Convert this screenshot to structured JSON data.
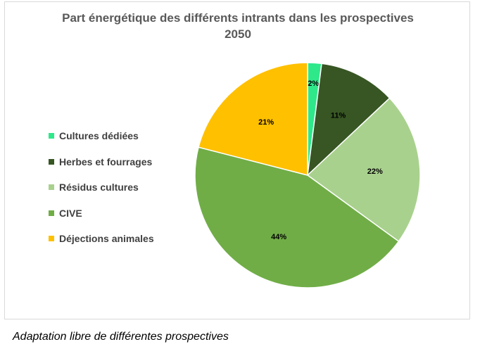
{
  "chart_data": {
    "type": "pie",
    "title_lines": [
      "Part énergétique des différents intrants dans les prospectives",
      "2050"
    ],
    "categories": [
      "Cultures dédiées",
      "Herbes et fourrages",
      "Résidus cultures",
      "CIVE",
      "Déjections animales"
    ],
    "values": [
      2,
      11,
      22,
      44,
      21
    ],
    "labels": [
      "2%",
      "11%",
      "22%",
      "44%",
      "21%"
    ],
    "colors": [
      "#2ee88a",
      "#375623",
      "#a9d18e",
      "#70ad47",
      "#ffc000"
    ],
    "legend_position": "left"
  },
  "caption": "Adaptation libre de différentes prospectives"
}
